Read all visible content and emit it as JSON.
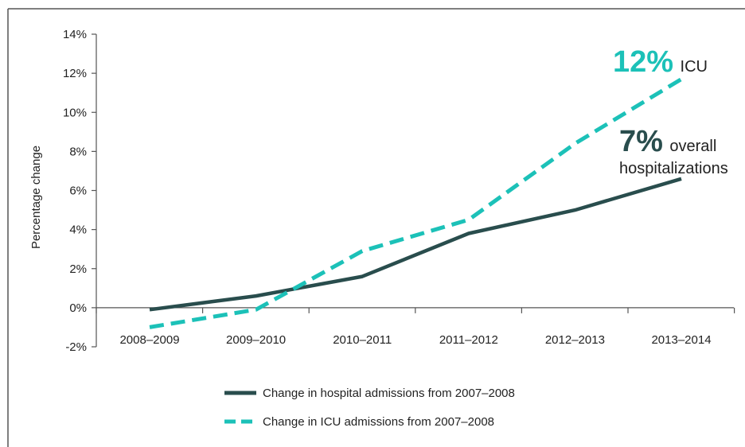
{
  "chart_data": {
    "type": "line",
    "title": "",
    "xlabel": "",
    "ylabel": "Percentage change",
    "categories": [
      "2008–2009",
      "2009–2010",
      "2010–2011",
      "2011–2012",
      "2012–2013",
      "2013–2014"
    ],
    "ylim": [
      -2,
      14
    ],
    "yticks": [
      -2,
      0,
      2,
      4,
      6,
      8,
      10,
      12,
      14
    ],
    "ytick_labels": [
      "-2%",
      "0%",
      "2%",
      "4%",
      "6%",
      "8%",
      "10%",
      "12%",
      "14%"
    ],
    "grid": false,
    "legend_position": "bottom",
    "series": [
      {
        "name": "Change in hospital admissions from 2007–2008",
        "values": [
          -0.1,
          0.6,
          1.6,
          3.8,
          5.0,
          6.6
        ],
        "color": "#294d4d",
        "style": "solid"
      },
      {
        "name": "Change in ICU admissions from 2007–2008",
        "values": [
          -1.0,
          -0.1,
          2.9,
          4.5,
          8.4,
          11.7
        ],
        "color": "#1cc1b8",
        "style": "dashed"
      }
    ],
    "annotations": [
      {
        "value": "12%",
        "text": "ICU",
        "color": "#1cc1b8"
      },
      {
        "value": "7%",
        "text_line1": "overall",
        "text_line2": "hospitalizations",
        "color": "#294d4d"
      }
    ]
  }
}
